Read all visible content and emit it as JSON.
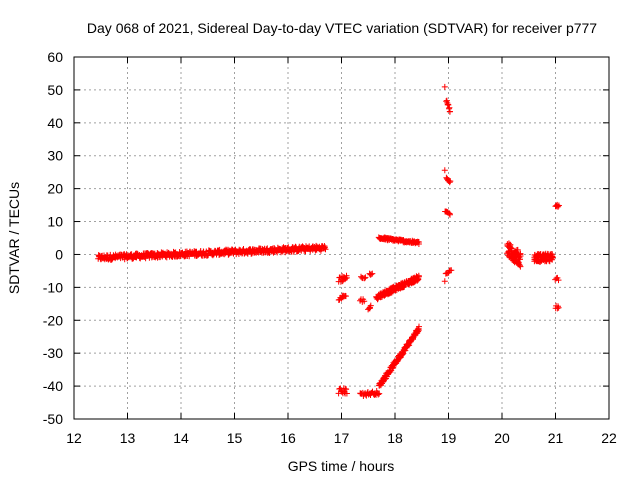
{
  "chart_data": {
    "type": "scatter",
    "title": "Day 068 of 2021, Sidereal Day-to-day VTEC variation (SDTVAR) for receiver p777",
    "xlabel": "GPS time / hours",
    "ylabel": "SDTVAR / TECUs",
    "xlim": [
      12,
      22
    ],
    "ylim": [
      -50,
      60
    ],
    "xticks": [
      "12",
      "13",
      "14",
      "15",
      "16",
      "17",
      "18",
      "19",
      "20",
      "21",
      "22"
    ],
    "yticks": [
      "-50",
      "-40",
      "-30",
      "-20",
      "-10",
      "0",
      "10",
      "20",
      "30",
      "40",
      "50",
      "60"
    ],
    "grid": true,
    "marker": "+",
    "color": "#ff0000",
    "segments": [
      {
        "x0": 12.45,
        "x1": 16.7,
        "y0": -1.0,
        "y1": 2.0,
        "spread": 1.6,
        "n": 520
      },
      {
        "x0": 16.95,
        "x1": 17.1,
        "y0": -41.5,
        "y1": -41.5,
        "spread": 1.8,
        "n": 14
      },
      {
        "x0": 16.95,
        "x1": 17.08,
        "y0": -13.5,
        "y1": -12.5,
        "spread": 1.2,
        "n": 10
      },
      {
        "x0": 16.95,
        "x1": 17.1,
        "y0": -7.5,
        "y1": -7.0,
        "spread": 2.0,
        "n": 14
      },
      {
        "x0": 17.35,
        "x1": 17.42,
        "y0": -14.0,
        "y1": -14.0,
        "spread": 1.0,
        "n": 5
      },
      {
        "x0": 17.36,
        "x1": 17.45,
        "y0": -7.0,
        "y1": -7.0,
        "spread": 0.8,
        "n": 5
      },
      {
        "x0": 17.5,
        "x1": 17.55,
        "y0": -16.5,
        "y1": -16.0,
        "spread": 1.0,
        "n": 5
      },
      {
        "x0": 17.52,
        "x1": 17.58,
        "y0": -6.0,
        "y1": -5.5,
        "spread": 0.8,
        "n": 4
      },
      {
        "x0": 17.35,
        "x1": 17.7,
        "y0": -42.5,
        "y1": -42.0,
        "spread": 1.2,
        "n": 25
      },
      {
        "x0": 17.7,
        "x1": 18.45,
        "y0": -40.0,
        "y1": -22.5,
        "spread": 1.4,
        "n": 140
      },
      {
        "x0": 17.65,
        "x1": 18.45,
        "y0": -13.0,
        "y1": -7.0,
        "spread": 1.5,
        "n": 140
      },
      {
        "x0": 17.7,
        "x1": 18.45,
        "y0": 5.0,
        "y1": 3.5,
        "spread": 0.8,
        "n": 90
      },
      {
        "x0": 18.93,
        "x1": 18.93,
        "y0": 51.0,
        "y1": 51.0,
        "spread": 0.3,
        "n": 1
      },
      {
        "x0": 18.96,
        "x1": 19.03,
        "y0": 47.0,
        "y1": 43.5,
        "spread": 1.0,
        "n": 10
      },
      {
        "x0": 18.93,
        "x1": 18.93,
        "y0": 25.5,
        "y1": 25.5,
        "spread": 0.3,
        "n": 1
      },
      {
        "x0": 18.96,
        "x1": 19.03,
        "y0": 23.0,
        "y1": 22.0,
        "spread": 0.8,
        "n": 8
      },
      {
        "x0": 18.94,
        "x1": 19.03,
        "y0": 13.0,
        "y1": 12.5,
        "spread": 1.0,
        "n": 8
      },
      {
        "x0": 18.95,
        "x1": 19.05,
        "y0": -5.5,
        "y1": -4.8,
        "spread": 1.0,
        "n": 8
      },
      {
        "x0": 18.93,
        "x1": 18.93,
        "y0": -8.0,
        "y1": -8.0,
        "spread": 0.3,
        "n": 1
      },
      {
        "x0": 20.1,
        "x1": 20.35,
        "y0": 1.5,
        "y1": -1.5,
        "spread": 4.5,
        "n": 70
      },
      {
        "x0": 20.6,
        "x1": 20.95,
        "y0": -1.0,
        "y1": -1.0,
        "spread": 2.5,
        "n": 80
      },
      {
        "x0": 21.0,
        "x1": 21.06,
        "y0": 15.0,
        "y1": 14.5,
        "spread": 0.8,
        "n": 6
      },
      {
        "x0": 21.0,
        "x1": 21.06,
        "y0": -7.5,
        "y1": -7.5,
        "spread": 0.8,
        "n": 4
      },
      {
        "x0": 21.0,
        "x1": 21.06,
        "y0": -16.0,
        "y1": -16.0,
        "spread": 0.8,
        "n": 5
      }
    ]
  }
}
